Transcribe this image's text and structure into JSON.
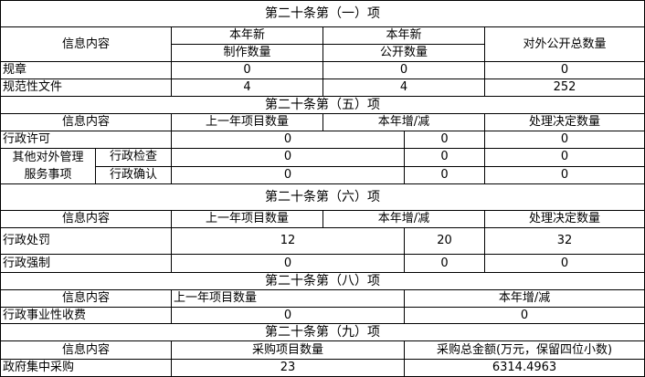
{
  "s1": {
    "title": "第二十条第（一）项",
    "h_info": "信息内容",
    "h_new_make_1": "本年新",
    "h_new_make_2": "制作数量",
    "h_new_pub_1": "本年新",
    "h_new_pub_2": "公开数量",
    "h_total": "对外公开总数量",
    "rows": [
      {
        "label": "规章",
        "make": "0",
        "pub": "0",
        "total": "0"
      },
      {
        "label": "规范性文件",
        "make": "4",
        "pub": "4",
        "total": "252"
      }
    ]
  },
  "s5": {
    "title": "第二十条第（五）项",
    "h_info": "信息内容",
    "h_prev": "上一年项目数量",
    "h_change": "本年增/减",
    "h_decided": "处理决定数量",
    "r_permit": {
      "label": "行政许可",
      "prev": "0",
      "change": "0",
      "decided": "0"
    },
    "other_group": "其他对外管理服务事项",
    "other_group_1": "其他对外管理",
    "other_group_2": "服务事项",
    "r_inspect": {
      "label": "行政检查",
      "prev": "0",
      "change": "0",
      "decided": "0"
    },
    "r_confirm": {
      "label": "行政确认",
      "prev": "0",
      "change": "0",
      "decided": "0"
    }
  },
  "s6": {
    "title": "第二十条第（六）项",
    "h_info": "信息内容",
    "h_prev": "上一年项目数量",
    "h_change": "本年增/减",
    "h_decided": "处理决定数量",
    "rows": [
      {
        "label": "行政处罚",
        "prev": "12",
        "change": "20",
        "decided": "32"
      },
      {
        "label": "行政强制",
        "prev": "0",
        "change": "0",
        "decided": "0"
      }
    ]
  },
  "s8": {
    "title": "第二十条第（八）项",
    "h_info": "信息内容",
    "h_prev": "上一年项目数量",
    "h_change": "本年增/减",
    "row": {
      "label": "行政事业性收费",
      "prev": "0",
      "change": "0"
    }
  },
  "s9": {
    "title": "第二十条第（九）项",
    "h_info": "信息内容",
    "h_count": "采购项目数量",
    "h_amount": "采购总金额(万元，保留四位小数)",
    "row": {
      "label": "政府集中采购",
      "count": "23",
      "amount": "6314.4963"
    }
  }
}
